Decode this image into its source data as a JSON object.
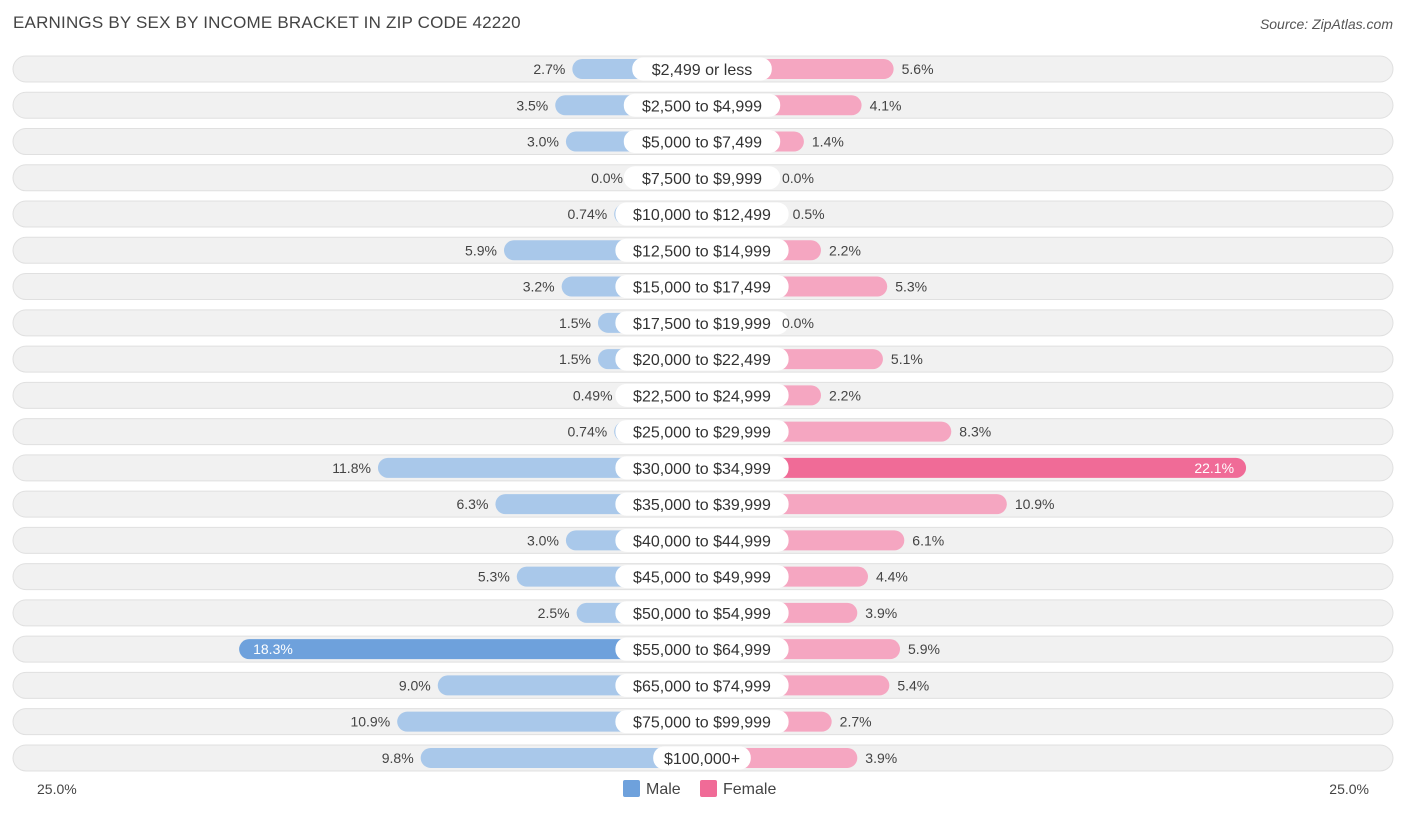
{
  "chart_data": {
    "type": "bar",
    "orientation": "horizontal-diverging",
    "title": "EARNINGS BY SEX BY INCOME BRACKET IN ZIP CODE 42220",
    "source": "Source: ZipAtlas.com",
    "categories": [
      "$2,499 or less",
      "$2,500 to $4,999",
      "$5,000 to $7,499",
      "$7,500 to $9,999",
      "$10,000 to $12,499",
      "$12,500 to $14,999",
      "$15,000 to $17,499",
      "$17,500 to $19,999",
      "$20,000 to $22,499",
      "$22,500 to $24,999",
      "$25,000 to $29,999",
      "$30,000 to $34,999",
      "$35,000 to $39,999",
      "$40,000 to $44,999",
      "$45,000 to $49,999",
      "$50,000 to $54,999",
      "$55,000 to $64,999",
      "$65,000 to $74,999",
      "$75,000 to $99,999",
      "$100,000+"
    ],
    "series": [
      {
        "name": "Male",
        "color": "#6ea1dc",
        "light_color": "#a9c8ea",
        "values": [
          2.7,
          3.5,
          3.0,
          0.0,
          0.74,
          5.9,
          3.2,
          1.5,
          1.5,
          0.49,
          0.74,
          11.8,
          6.3,
          3.0,
          5.3,
          2.5,
          18.3,
          9.0,
          10.9,
          9.8
        ],
        "labels": [
          "2.7%",
          "3.5%",
          "3.0%",
          "0.0%",
          "0.74%",
          "5.9%",
          "3.2%",
          "1.5%",
          "1.5%",
          "0.49%",
          "0.74%",
          "11.8%",
          "6.3%",
          "3.0%",
          "5.3%",
          "2.5%",
          "18.3%",
          "9.0%",
          "10.9%",
          "9.8%"
        ]
      },
      {
        "name": "Female",
        "color": "#f06b97",
        "light_color": "#f5a6c1",
        "values": [
          5.6,
          4.1,
          1.4,
          0.0,
          0.5,
          2.2,
          5.3,
          0.0,
          5.1,
          2.2,
          8.3,
          22.1,
          10.9,
          6.1,
          4.4,
          3.9,
          5.9,
          5.4,
          2.7,
          3.9
        ],
        "labels": [
          "5.6%",
          "4.1%",
          "1.4%",
          "0.0%",
          "0.5%",
          "2.2%",
          "5.3%",
          "0.0%",
          "5.1%",
          "2.2%",
          "8.3%",
          "22.1%",
          "10.9%",
          "6.1%",
          "4.4%",
          "3.9%",
          "5.9%",
          "5.4%",
          "2.7%",
          "3.9%"
        ]
      }
    ],
    "axis": {
      "min": 0,
      "max": 25.0,
      "left_label": "25.0%",
      "right_label": "25.0%"
    },
    "legend": {
      "position": "bottom-center",
      "items": [
        "Male",
        "Female"
      ]
    }
  }
}
